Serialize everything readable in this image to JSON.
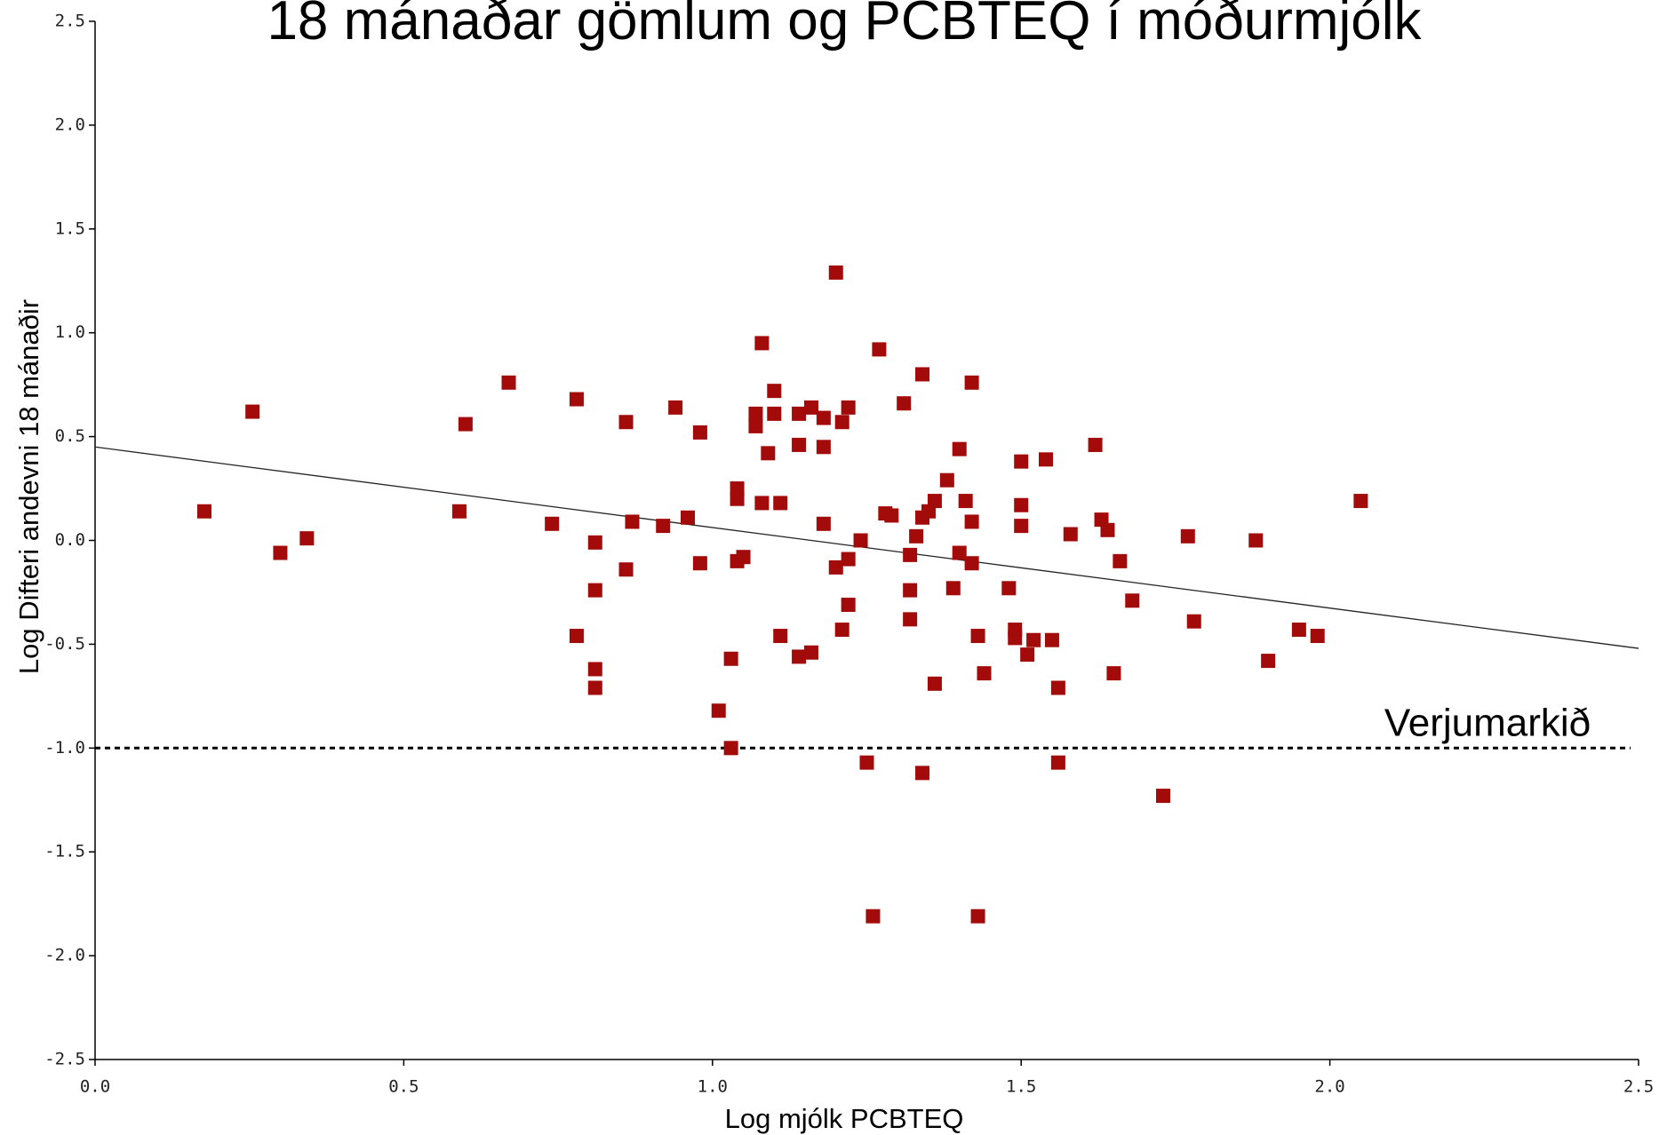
{
  "chart_data": {
    "type": "scatter",
    "title": "18 mánaðar gömlum og PCBTEQ í móðurmjólk",
    "xlabel": "Log mjólk PCBTEQ",
    "ylabel": "Log Difteri andevni 18 mánaðir",
    "color": "#a30b0b",
    "x": [
      0.177,
      0.255,
      0.3,
      0.343,
      0.59,
      0.6,
      0.67,
      0.74,
      0.78,
      0.78,
      0.81,
      0.81,
      0.81,
      0.81,
      0.86,
      0.86,
      0.87,
      0.92,
      0.94,
      0.96,
      0.98,
      0.98,
      1.01,
      1.03,
      1.03,
      1.04,
      1.04,
      1.04,
      1.05,
      1.07,
      1.07,
      1.08,
      1.08,
      1.09,
      1.1,
      1.1,
      1.11,
      1.11,
      1.14,
      1.14,
      1.14,
      1.16,
      1.16,
      1.18,
      1.18,
      1.18,
      1.2,
      1.2,
      1.21,
      1.21,
      1.22,
      1.22,
      1.22,
      1.24,
      1.25,
      1.26,
      1.27,
      1.28,
      1.29,
      1.31,
      1.32,
      1.32,
      1.32,
      1.33,
      1.34,
      1.34,
      1.34,
      1.35,
      1.36,
      1.36,
      1.38,
      1.39,
      1.4,
      1.4,
      1.41,
      1.42,
      1.42,
      1.42,
      1.43,
      1.43,
      1.44,
      1.48,
      1.49,
      1.49,
      1.5,
      1.5,
      1.5,
      1.51,
      1.52,
      1.54,
      1.55,
      1.56,
      1.56,
      1.58,
      1.62,
      1.63,
      1.64,
      1.65,
      1.66,
      1.68,
      1.73,
      1.77,
      1.78,
      1.88,
      1.9,
      1.95,
      1.98,
      2.05
    ],
    "values": [
      0.14,
      0.62,
      -0.06,
      0.01,
      0.14,
      0.56,
      0.76,
      0.08,
      0.68,
      -0.46,
      -0.24,
      -0.62,
      -0.01,
      -0.71,
      0.57,
      -0.14,
      0.09,
      0.07,
      0.64,
      0.11,
      0.52,
      -0.11,
      -0.82,
      -0.57,
      -1.0,
      0.25,
      0.2,
      -0.1,
      -0.08,
      0.61,
      0.55,
      0.95,
      0.18,
      0.42,
      0.61,
      0.72,
      -0.46,
      0.18,
      0.61,
      0.46,
      -0.56,
      0.64,
      -0.54,
      0.59,
      0.45,
      0.08,
      1.29,
      -0.13,
      0.57,
      -0.43,
      -0.31,
      0.64,
      -0.09,
      0.0,
      -1.07,
      -1.81,
      0.92,
      0.13,
      0.12,
      0.66,
      -0.38,
      -0.07,
      -0.24,
      0.02,
      0.11,
      -1.12,
      0.8,
      0.14,
      0.19,
      -0.69,
      0.29,
      -0.23,
      -0.06,
      0.44,
      0.19,
      -0.11,
      0.76,
      0.09,
      -0.46,
      -1.81,
      -0.64,
      -0.23,
      -0.43,
      -0.47,
      0.38,
      0.17,
      0.07,
      -0.55,
      -0.48,
      0.39,
      -0.48,
      -0.71,
      -1.07,
      0.03,
      0.46,
      0.1,
      0.05,
      -0.64,
      -0.1,
      -0.29,
      -1.23,
      0.02,
      -0.39,
      0.0,
      -0.58,
      -0.43,
      -0.46,
      0.19
    ],
    "trend_line": {
      "x": [
        0,
        2.5
      ],
      "y": [
        0.45,
        -0.52
      ]
    },
    "reference_line": {
      "y": -1.0,
      "label": "Verjumarkið"
    },
    "xlim": [
      0,
      2.5
    ],
    "ylim": [
      -2.5,
      2.5
    ],
    "xticks": [
      {
        "value": 0,
        "label": "0.0"
      },
      0.5,
      {
        "value": 1,
        "label": "1.0"
      },
      1.5,
      {
        "value": 2,
        "label": "2.0"
      },
      2.5
    ],
    "yticks": [
      -2.5,
      {
        "value": -2,
        "label": "-2.0"
      },
      -1.5,
      {
        "value": -1,
        "label": "-1.0"
      },
      -0.5,
      {
        "value": 0,
        "label": "0.0"
      },
      0.5,
      {
        "value": 1,
        "label": "1.0"
      },
      1.5,
      {
        "value": 2,
        "label": "2.0"
      },
      2.5
    ]
  }
}
